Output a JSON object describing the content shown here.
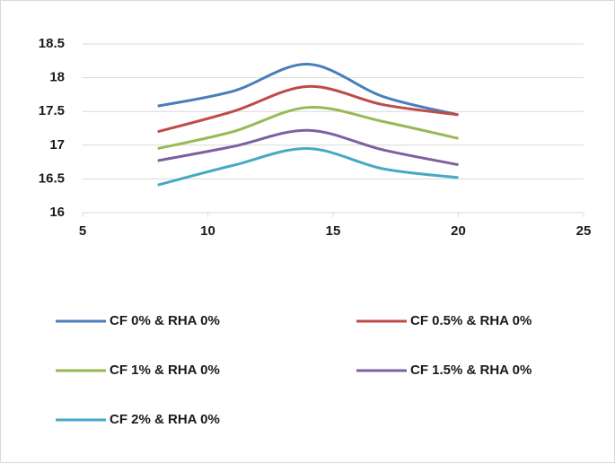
{
  "chart_data": {
    "type": "line",
    "x": [
      8,
      11,
      14,
      17,
      20
    ],
    "series": [
      {
        "name": "CF 0% & RHA 0%",
        "color": "#4a7ebb",
        "values": [
          17.58,
          17.8,
          18.2,
          17.72,
          17.45
        ]
      },
      {
        "name": "CF 0.5% & RHA 0%",
        "color": "#be4b48",
        "values": [
          17.2,
          17.5,
          17.87,
          17.6,
          17.45
        ]
      },
      {
        "name": "CF 1% & RHA 0%",
        "color": "#98b954",
        "values": [
          16.95,
          17.2,
          17.56,
          17.35,
          17.1
        ]
      },
      {
        "name": "CF 1.5% & RHA 0%",
        "color": "#7d60a0",
        "values": [
          16.77,
          16.98,
          17.22,
          16.93,
          16.71
        ]
      },
      {
        "name": "CF 2% & RHA 0%",
        "color": "#46aac5",
        "values": [
          16.41,
          16.7,
          16.95,
          16.65,
          16.52
        ]
      }
    ],
    "xlim": [
      5,
      25
    ],
    "xticks": [
      5,
      10,
      15,
      20,
      25
    ],
    "ylim": [
      16,
      18.5
    ],
    "yticks": [
      16,
      16.5,
      17,
      17.5,
      18,
      18.5
    ],
    "grid": true,
    "legend": "bottom"
  }
}
